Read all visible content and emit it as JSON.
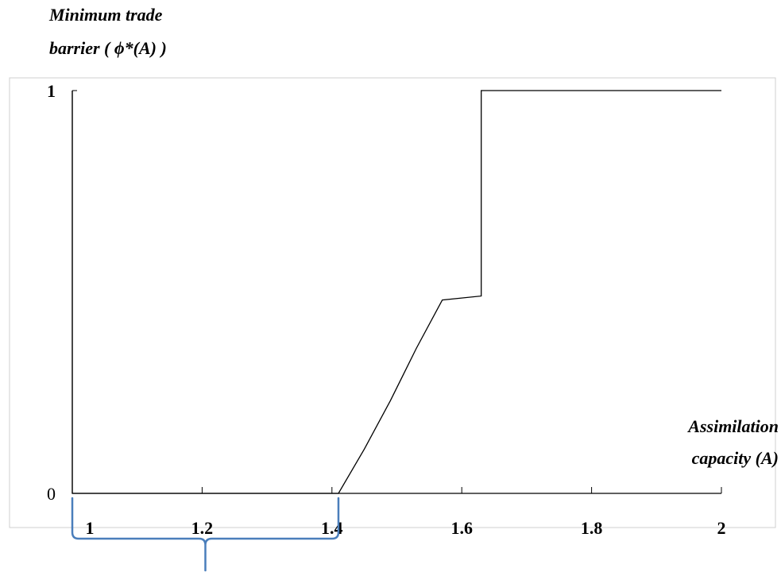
{
  "chart_data": {
    "type": "line",
    "ylabel": [
      "Minimum trade",
      "barrier ( ϕ*(A) )"
    ],
    "xlabel": [
      "Assimilation",
      "capacity (A)"
    ],
    "xlim": [
      1,
      2
    ],
    "ylim": [
      0,
      1
    ],
    "x_ticks": [
      "1",
      "1.2",
      "1.4",
      "1.6",
      "1.8",
      "2"
    ],
    "y_ticks": [
      "0",
      "1"
    ],
    "series": [
      {
        "color": "#000000",
        "points": [
          [
            1.0,
            1.0
          ],
          [
            1.0,
            0.0
          ],
          [
            1.41,
            0.0
          ],
          [
            1.45,
            0.11
          ],
          [
            1.49,
            0.23
          ],
          [
            1.53,
            0.36
          ],
          [
            1.57,
            0.48
          ],
          [
            1.63,
            0.49
          ],
          [
            1.63,
            1.0
          ],
          [
            2.0,
            1.0
          ]
        ]
      }
    ],
    "annotations": [
      {
        "type": "brace",
        "from": 1.0,
        "to": 1.41,
        "color": "#4a7ebb"
      }
    ]
  }
}
